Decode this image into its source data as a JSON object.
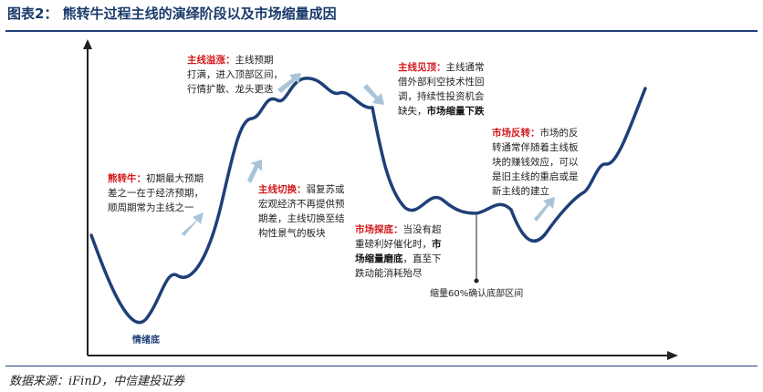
{
  "title": "图表2： 熊转牛过程主线的演绎阶段以及市场缩量成因",
  "source": "数据来源：iFinD，中信建投证券",
  "colors": {
    "curve": "#1f3f78",
    "arrow": "#a9c4d8",
    "highlight": "#d2191c",
    "title": "#1a3a6b"
  },
  "annotations": {
    "bear_to_bull": {
      "key": "熊转牛：",
      "lines": [
        "初期最大预期",
        "差之一在于经济预期，",
        "顺周期常为主线之一"
      ]
    },
    "switch": {
      "key": "主线切换：",
      "lines": [
        "弱复苏或",
        "宏观经济不再提供预",
        "期差，主线切换至结",
        "构性景气的板块"
      ]
    },
    "mainline_up": {
      "key": "主线溢涨：",
      "lines": [
        "主线预期",
        "打满，进入顶部区间，",
        "行情扩散、龙头更迭"
      ]
    },
    "mainline_top": {
      "key": "主线见顶：",
      "lines": [
        "主线通常",
        "借外部利空技术性回",
        "调，持续性投资机会",
        "缺失，"
      ],
      "bold_tail": "市场缩量下跌"
    },
    "bottoming": {
      "key": "市场探底：",
      "lines": [
        "当没有超",
        "重磅利好催化时，",
        "场缩量磨底，直至下",
        "跌动能消耗殆尽"
      ],
      "bold_a": "市",
      "bold_b": "场缩量磨底"
    },
    "reversal": {
      "key": "市场反转：",
      "lines": [
        "市场的反",
        "转通常伴随着主线板",
        "块的赚钱效应，可以",
        "是旧主线的重启或是",
        "新主线的建立"
      ]
    }
  },
  "labels": {
    "sentiment_bottom": "情绪底",
    "volume_confirm": "缩量60%确认底部区间"
  }
}
